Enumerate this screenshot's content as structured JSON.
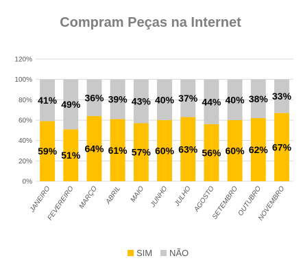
{
  "chart_data": {
    "type": "bar",
    "stacked": true,
    "percent": true,
    "title": "Compram Peças na Internet",
    "categories": [
      "JANEIRO",
      "FEVEREIRO",
      "MARÇO",
      "ABRIL",
      "MAIO",
      "JUNHO",
      "JULHO",
      "AGOSTO",
      "SETEMBRO",
      "OUTUBRO",
      "NOVEMBRO"
    ],
    "series": [
      {
        "name": "SIM",
        "values": [
          59,
          51,
          64,
          61,
          57,
          60,
          63,
          56,
          60,
          62,
          67
        ],
        "color": "#FFC000"
      },
      {
        "name": "NÃO",
        "values": [
          41,
          49,
          36,
          39,
          43,
          40,
          37,
          44,
          40,
          38,
          33
        ],
        "color": "#C9C9C9"
      }
    ],
    "yticks": [
      "0%",
      "20%",
      "40%",
      "60%",
      "80%",
      "100%",
      "120%"
    ],
    "ylim": [
      0,
      120
    ],
    "grid": true,
    "legend": "bottom"
  }
}
